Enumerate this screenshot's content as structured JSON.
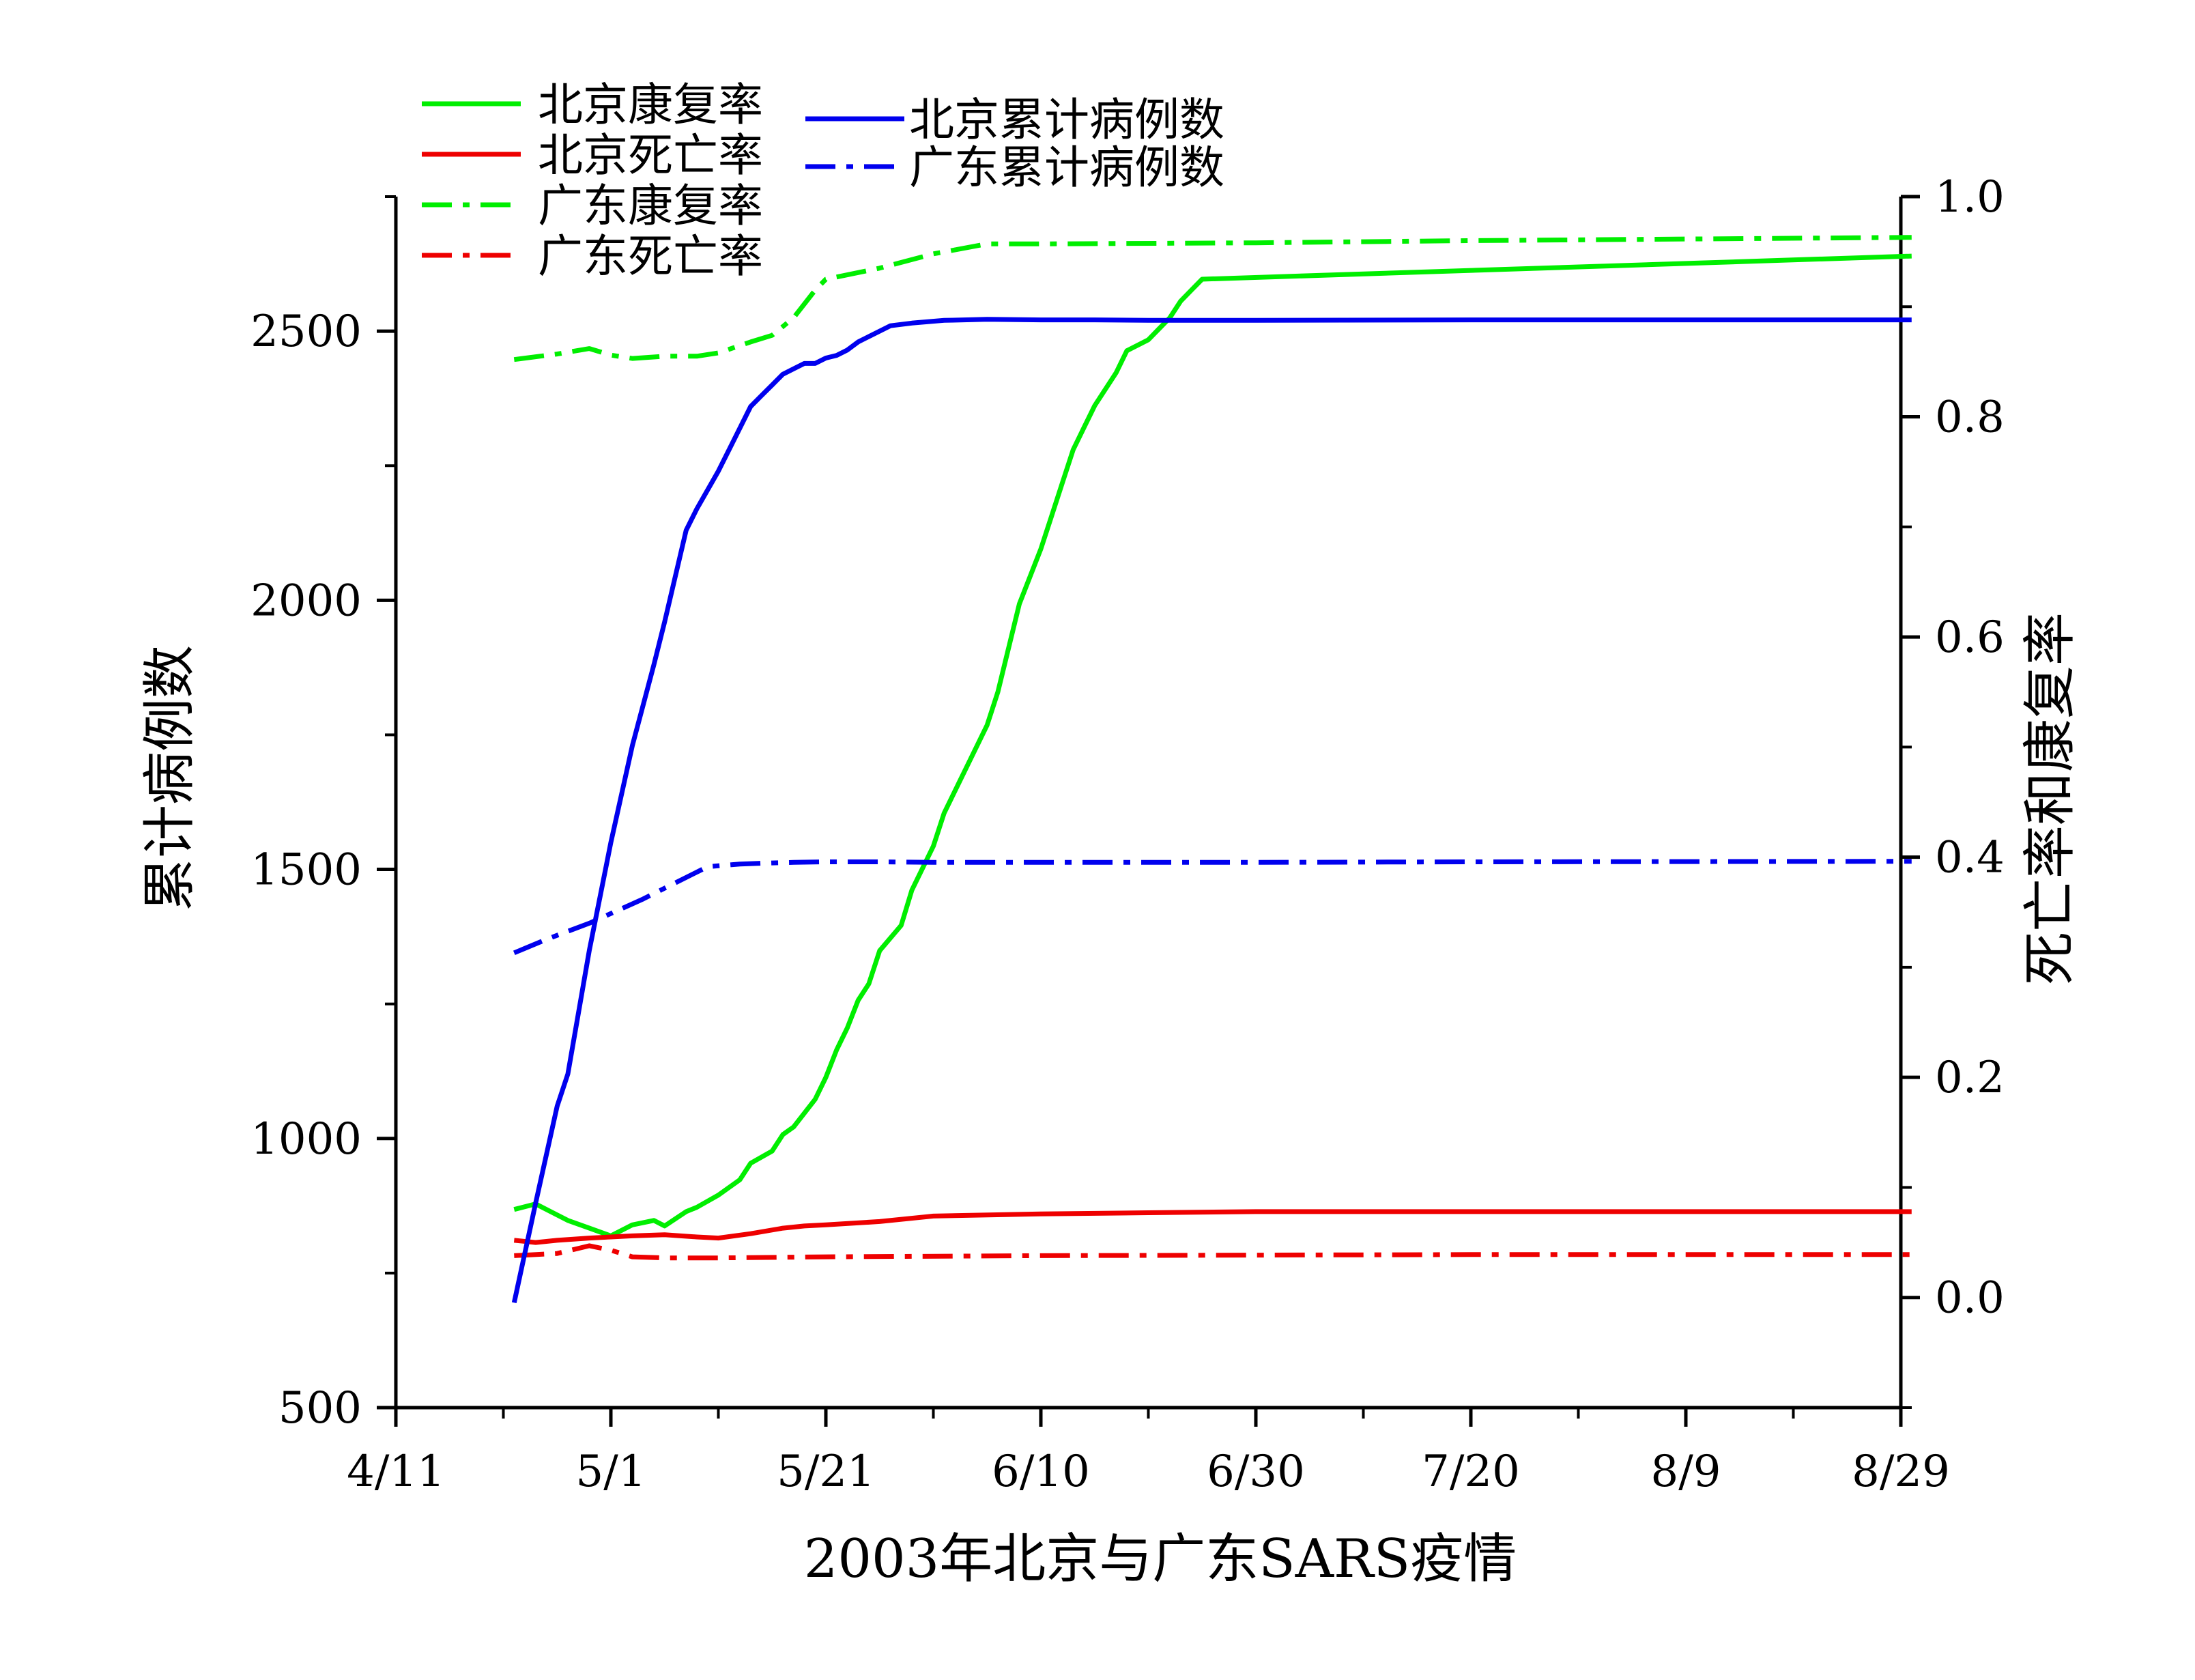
{
  "chart_data": {
    "type": "line",
    "xlabel": "2003年北京与广东SARS疫情",
    "ylabel_left": "累计病例数",
    "ylabel_right": "死亡率和康复率",
    "x_ticks": [
      "4/11",
      "5/1",
      "5/21",
      "6/10",
      "6/30",
      "7/20",
      "8/9",
      "8/29"
    ],
    "x_tick_values": [
      0,
      20,
      40,
      60,
      80,
      100,
      120,
      140
    ],
    "x_range": [
      0,
      140
    ],
    "y_left_range": [
      500,
      2750
    ],
    "y_left_ticks": [
      500,
      1000,
      1500,
      2000,
      2500
    ],
    "y_right_range": [
      -0.1,
      1.0
    ],
    "y_right_ticks": [
      "0.0",
      "0.2",
      "0.4",
      "0.6",
      "0.8",
      "1.0"
    ],
    "y_right_tick_values": [
      0.0,
      0.2,
      0.4,
      0.6,
      0.8,
      1.0
    ],
    "legend_left": [
      "北京康复率",
      "北京死亡率",
      "广东康复率",
      "广东死亡率"
    ],
    "legend_right": [
      "北京累计病例数",
      "广东累计病例数"
    ],
    "series": [
      {
        "name": "北京康复率",
        "axis": "right",
        "color": "#00ee00",
        "dash": "solid",
        "x": [
          11,
          13,
          16,
          18,
          20,
          22,
          24,
          25,
          27,
          28,
          30,
          32,
          33,
          35,
          36,
          37,
          39,
          40,
          41,
          42,
          43,
          44,
          45,
          47,
          48,
          50,
          51,
          53,
          55,
          56,
          58,
          60,
          61,
          62,
          63,
          64,
          65,
          67,
          68,
          70,
          71,
          72,
          73,
          74,
          75,
          141
        ],
        "y": [
          0.08,
          0.085,
          0.07,
          0.063,
          0.056,
          0.066,
          0.07,
          0.065,
          0.078,
          0.082,
          0.093,
          0.107,
          0.122,
          0.133,
          0.148,
          0.155,
          0.18,
          0.2,
          0.225,
          0.245,
          0.27,
          0.285,
          0.315,
          0.338,
          0.37,
          0.41,
          0.44,
          0.48,
          0.52,
          0.55,
          0.63,
          0.68,
          0.71,
          0.74,
          0.77,
          0.79,
          0.81,
          0.84,
          0.86,
          0.87,
          0.88,
          0.89,
          0.905,
          0.915,
          0.925,
          0.946
        ]
      },
      {
        "name": "北京死亡率",
        "axis": "right",
        "color": "#ee0000",
        "dash": "solid",
        "x": [
          11,
          13,
          15,
          18,
          20,
          22,
          25,
          28,
          30,
          33,
          36,
          38,
          40,
          45,
          50,
          60,
          70,
          80,
          100,
          141
        ],
        "y": [
          0.052,
          0.05,
          0.052,
          0.054,
          0.055,
          0.056,
          0.057,
          0.055,
          0.054,
          0.058,
          0.063,
          0.065,
          0.066,
          0.069,
          0.074,
          0.076,
          0.077,
          0.078,
          0.078,
          0.078
        ]
      },
      {
        "name": "广东康复率",
        "axis": "right",
        "color": "#00ee00",
        "dash": "dashdot",
        "x": [
          11,
          15,
          18,
          20,
          22,
          25,
          28,
          30,
          33,
          35,
          37,
          39,
          40,
          45,
          50,
          55,
          60,
          80,
          100,
          141
        ],
        "y": [
          0.852,
          0.857,
          0.862,
          0.856,
          0.853,
          0.855,
          0.855,
          0.858,
          0.868,
          0.874,
          0.89,
          0.915,
          0.925,
          0.935,
          0.948,
          0.957,
          0.957,
          0.958,
          0.96,
          0.963
        ]
      },
      {
        "name": "广东死亡率",
        "axis": "right",
        "color": "#ee0000",
        "dash": "dashdot",
        "x": [
          11,
          15,
          18,
          20,
          22,
          25,
          30,
          40,
          60,
          100,
          141
        ],
        "y": [
          0.038,
          0.04,
          0.047,
          0.043,
          0.037,
          0.036,
          0.036,
          0.037,
          0.038,
          0.039,
          0.039
        ]
      },
      {
        "name": "北京累计病例数",
        "axis": "left",
        "color": "#0000ee",
        "dash": "solid",
        "x": [
          11,
          13,
          15,
          16,
          18,
          19,
          20,
          22,
          24,
          25,
          27,
          28,
          30,
          31,
          33,
          34,
          35,
          36,
          37,
          38,
          39,
          40,
          41,
          42,
          43,
          44,
          46,
          48,
          51,
          55,
          60,
          65,
          70,
          80,
          100,
          141
        ],
        "y": [
          695,
          880,
          1060,
          1120,
          1350,
          1450,
          1550,
          1730,
          1880,
          1960,
          2130,
          2170,
          2240,
          2280,
          2360,
          2380,
          2400,
          2420,
          2430,
          2440,
          2440,
          2450,
          2455,
          2465,
          2480,
          2490,
          2510,
          2515,
          2520,
          2522,
          2521,
          2521,
          2520,
          2520,
          2521,
          2521
        ]
      },
      {
        "name": "广东累计病例数",
        "axis": "left",
        "color": "#0000ee",
        "dash": "dashdot",
        "x": [
          11,
          14,
          16,
          18,
          20,
          23,
          26,
          29,
          32,
          35,
          37,
          40,
          45,
          50,
          60,
          80,
          100,
          141
        ],
        "y": [
          1345,
          1370,
          1385,
          1400,
          1418,
          1445,
          1475,
          1505,
          1510,
          1512,
          1513,
          1514,
          1514,
          1513,
          1513,
          1513,
          1514,
          1515
        ]
      }
    ]
  }
}
